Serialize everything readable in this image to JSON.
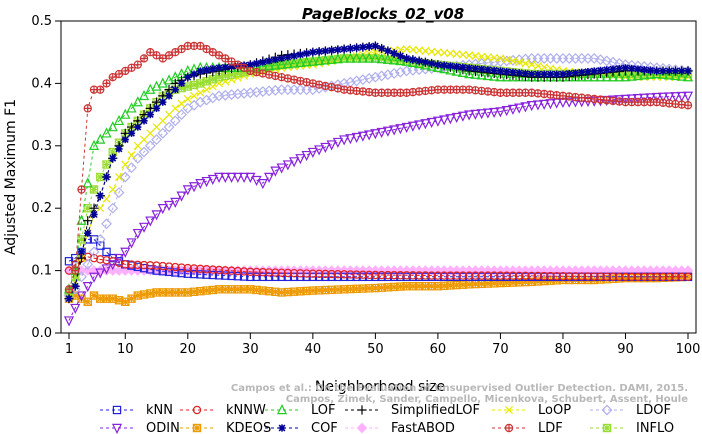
{
  "chart_data": {
    "type": "line",
    "title": "PageBlocks_02_v08",
    "xlabel": "Neighborhood size",
    "ylabel": "Adjusted Maximum F1",
    "xlim": [
      1,
      100
    ],
    "ylim": [
      0,
      0.5
    ],
    "xticks": [
      1,
      10,
      20,
      30,
      40,
      50,
      60,
      70,
      80,
      90,
      100
    ],
    "yticks": [
      0.0,
      0.1,
      0.2,
      0.3,
      0.4,
      0.5
    ],
    "credit": [
      "Campos et al.: On the Evaluation of Unsupervised Outlier Detection. DAMI, 2015.",
      "Campos, Zimek, Sander, Campello, Micenkova, Schubert, Assent, Houle"
    ],
    "legend_position": "bottom",
    "series": [
      {
        "name": "kNN",
        "color": "#2222dd",
        "marker": "square",
        "x": [
          1,
          2,
          3,
          4,
          5,
          6,
          8,
          10,
          15,
          20,
          30,
          40,
          50,
          60,
          70,
          80,
          90,
          100
        ],
        "y": [
          0.115,
          0.12,
          0.13,
          0.15,
          0.15,
          0.14,
          0.12,
          0.11,
          0.1,
          0.095,
          0.09,
          0.09,
          0.09,
          0.09,
          0.09,
          0.09,
          0.09,
          0.09
        ]
      },
      {
        "name": "kNNW",
        "color": "#dd2222",
        "marker": "circle",
        "x": [
          1,
          2,
          3,
          4,
          5,
          6,
          8,
          10,
          15,
          20,
          30,
          40,
          50,
          60,
          70,
          80,
          90,
          100
        ],
        "y": [
          0.1,
          0.11,
          0.12,
          0.122,
          0.12,
          0.118,
          0.115,
          0.11,
          0.108,
          0.104,
          0.098,
          0.095,
          0.093,
          0.092,
          0.092,
          0.091,
          0.09,
          0.09
        ]
      },
      {
        "name": "LOF",
        "color": "#22cc22",
        "marker": "triangle-up",
        "x": [
          1,
          2,
          3,
          4,
          5,
          6,
          8,
          10,
          12,
          14,
          16,
          18,
          20,
          22,
          25,
          30,
          35,
          40,
          45,
          50,
          55,
          60,
          65,
          70,
          75,
          80,
          85,
          90,
          95,
          100
        ],
        "y": [
          0.07,
          0.1,
          0.18,
          0.24,
          0.3,
          0.31,
          0.33,
          0.35,
          0.37,
          0.39,
          0.4,
          0.41,
          0.42,
          0.425,
          0.425,
          0.425,
          0.43,
          0.435,
          0.44,
          0.44,
          0.435,
          0.425,
          0.415,
          0.41,
          0.41,
          0.41,
          0.41,
          0.41,
          0.415,
          0.41
        ]
      },
      {
        "name": "SimplifiedLOF",
        "color": "#000000",
        "marker": "plus",
        "x": [
          1,
          2,
          3,
          4,
          5,
          6,
          8,
          10,
          12,
          14,
          16,
          18,
          20,
          22,
          25,
          30,
          35,
          40,
          45,
          50,
          55,
          60,
          65,
          70,
          75,
          80,
          85,
          90,
          95,
          100
        ],
        "y": [
          0.055,
          0.075,
          0.12,
          0.18,
          0.2,
          0.22,
          0.28,
          0.32,
          0.34,
          0.36,
          0.38,
          0.4,
          0.41,
          0.415,
          0.42,
          0.43,
          0.445,
          0.45,
          0.455,
          0.46,
          0.44,
          0.43,
          0.42,
          0.415,
          0.41,
          0.41,
          0.415,
          0.42,
          0.42,
          0.42
        ]
      },
      {
        "name": "LoOP",
        "color": "#e8e800",
        "marker": "x",
        "x": [
          1,
          2,
          3,
          4,
          5,
          6,
          8,
          10,
          12,
          14,
          16,
          18,
          20,
          22,
          25,
          30,
          35,
          40,
          45,
          50,
          55,
          60,
          65,
          70,
          75,
          80,
          85,
          90,
          95,
          100
        ],
        "y": [
          0.06,
          0.08,
          0.12,
          0.16,
          0.19,
          0.2,
          0.23,
          0.27,
          0.3,
          0.32,
          0.34,
          0.36,
          0.375,
          0.385,
          0.4,
          0.415,
          0.425,
          0.43,
          0.44,
          0.45,
          0.455,
          0.45,
          0.445,
          0.44,
          0.43,
          0.42,
          0.415,
          0.41,
          0.41,
          0.41
        ]
      },
      {
        "name": "LDOF",
        "color": "#b0b0ee",
        "marker": "diamond",
        "x": [
          1,
          2,
          3,
          4,
          5,
          6,
          8,
          10,
          12,
          14,
          16,
          18,
          20,
          22,
          25,
          30,
          35,
          40,
          45,
          50,
          55,
          60,
          65,
          70,
          75,
          80,
          85,
          90,
          95,
          100
        ],
        "y": [
          0.06,
          0.07,
          0.09,
          0.11,
          0.13,
          0.15,
          0.2,
          0.25,
          0.28,
          0.3,
          0.32,
          0.34,
          0.36,
          0.37,
          0.38,
          0.385,
          0.39,
          0.39,
          0.4,
          0.41,
          0.42,
          0.425,
          0.43,
          0.435,
          0.44,
          0.44,
          0.44,
          0.43,
          0.425,
          0.42
        ]
      },
      {
        "name": "ODIN",
        "color": "#8822dd",
        "marker": "triangle-down",
        "x": [
          1,
          2,
          3,
          5,
          8,
          10,
          12,
          14,
          16,
          18,
          20,
          22,
          25,
          28,
          30,
          32,
          34,
          36,
          40,
          45,
          50,
          55,
          60,
          65,
          70,
          75,
          80,
          85,
          90,
          95,
          100
        ],
        "y": [
          0.02,
          0.04,
          0.06,
          0.09,
          0.11,
          0.13,
          0.16,
          0.18,
          0.2,
          0.21,
          0.23,
          0.24,
          0.25,
          0.25,
          0.25,
          0.24,
          0.26,
          0.27,
          0.29,
          0.31,
          0.32,
          0.33,
          0.34,
          0.35,
          0.355,
          0.365,
          0.37,
          0.372,
          0.375,
          0.378,
          0.38
        ]
      },
      {
        "name": "KDEOS",
        "color": "#ee9900",
        "marker": "asterisk-square",
        "x": [
          1,
          2,
          3,
          4,
          5,
          6,
          8,
          10,
          12,
          15,
          20,
          25,
          30,
          35,
          40,
          45,
          50,
          55,
          60,
          65,
          70,
          75,
          80,
          85,
          90,
          95,
          100
        ],
        "y": [
          0.055,
          0.06,
          0.055,
          0.05,
          0.06,
          0.055,
          0.055,
          0.05,
          0.06,
          0.065,
          0.065,
          0.07,
          0.07,
          0.065,
          0.068,
          0.07,
          0.072,
          0.075,
          0.075,
          0.078,
          0.08,
          0.082,
          0.085,
          0.085,
          0.088,
          0.088,
          0.09
        ]
      },
      {
        "name": "COF",
        "color": "#000099",
        "marker": "star",
        "x": [
          1,
          2,
          3,
          4,
          5,
          6,
          8,
          10,
          12,
          14,
          16,
          18,
          20,
          22,
          25,
          30,
          35,
          40,
          45,
          50,
          55,
          60,
          65,
          70,
          75,
          80,
          85,
          90,
          95,
          100
        ],
        "y": [
          0.055,
          0.075,
          0.13,
          0.16,
          0.19,
          0.22,
          0.28,
          0.31,
          0.33,
          0.35,
          0.37,
          0.39,
          0.41,
          0.42,
          0.425,
          0.43,
          0.44,
          0.45,
          0.455,
          0.46,
          0.44,
          0.43,
          0.425,
          0.42,
          0.415,
          0.415,
          0.42,
          0.425,
          0.42,
          0.42
        ]
      },
      {
        "name": "FastABOD",
        "color": "#ffb0ff",
        "marker": "diamond-filled",
        "x": [
          1,
          5,
          10,
          20,
          30,
          40,
          50,
          60,
          70,
          80,
          90,
          100
        ],
        "y": [
          0.1,
          0.1,
          0.1,
          0.1,
          0.1,
          0.1,
          0.1,
          0.1,
          0.1,
          0.1,
          0.1,
          0.1
        ]
      },
      {
        "name": "LDF",
        "color": "#cc3333",
        "marker": "circle-plus",
        "x": [
          1,
          2,
          3,
          4,
          5,
          6,
          8,
          10,
          12,
          14,
          16,
          18,
          20,
          22,
          25,
          30,
          35,
          40,
          45,
          50,
          55,
          60,
          65,
          70,
          75,
          80,
          85,
          90,
          95,
          100
        ],
        "y": [
          0.07,
          0.1,
          0.23,
          0.36,
          0.39,
          0.39,
          0.41,
          0.42,
          0.43,
          0.45,
          0.44,
          0.45,
          0.46,
          0.46,
          0.445,
          0.42,
          0.41,
          0.4,
          0.39,
          0.385,
          0.385,
          0.39,
          0.39,
          0.385,
          0.385,
          0.38,
          0.375,
          0.37,
          0.37,
          0.365
        ]
      },
      {
        "name": "INFLO",
        "color": "#99dd33",
        "marker": "asterisk-square",
        "x": [
          1,
          2,
          3,
          4,
          5,
          6,
          8,
          10,
          12,
          14,
          16,
          18,
          20,
          22,
          25,
          30,
          35,
          40,
          45,
          50,
          55,
          60,
          65,
          70,
          75,
          80,
          85,
          90,
          95,
          100
        ],
        "y": [
          0.065,
          0.09,
          0.15,
          0.2,
          0.23,
          0.25,
          0.29,
          0.32,
          0.34,
          0.36,
          0.38,
          0.39,
          0.395,
          0.4,
          0.41,
          0.42,
          0.43,
          0.435,
          0.44,
          0.44,
          0.435,
          0.43,
          0.425,
          0.42,
          0.415,
          0.415,
          0.415,
          0.415,
          0.415,
          0.415
        ]
      }
    ]
  }
}
